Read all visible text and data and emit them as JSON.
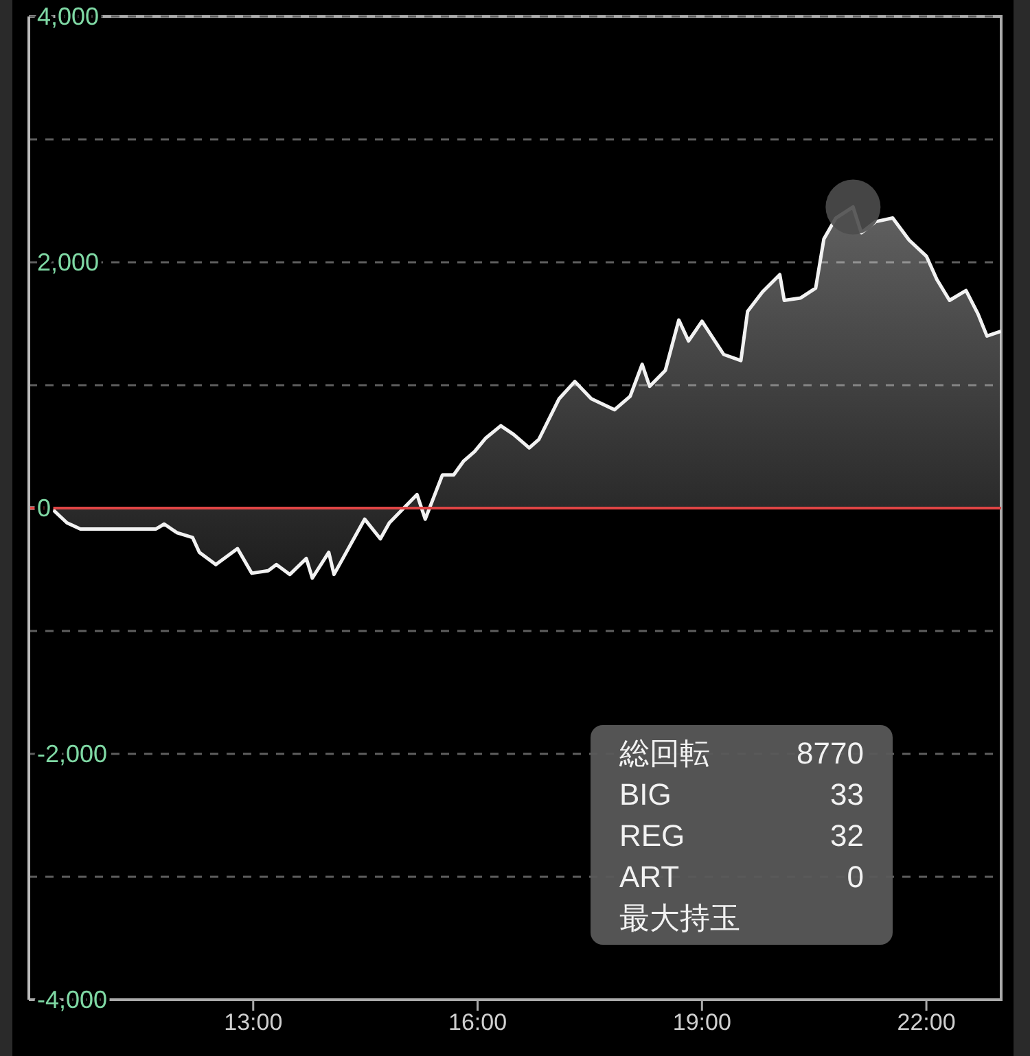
{
  "chart_data": {
    "type": "area",
    "x": [
      10.0,
      10.3,
      10.51,
      10.69,
      11.7,
      11.81,
      11.98,
      12.19,
      12.28,
      12.5,
      12.79,
      12.98,
      13.2,
      13.31,
      13.49,
      13.71,
      13.79,
      14.01,
      14.08,
      14.49,
      14.7,
      14.82,
      15.19,
      15.3,
      15.53,
      15.68,
      15.81,
      15.96,
      16.11,
      16.31,
      16.48,
      16.69,
      16.82,
      17.09,
      17.3,
      17.52,
      17.83,
      18.04,
      18.2,
      18.3,
      18.51,
      18.69,
      18.82,
      19.0,
      19.29,
      19.52,
      19.61,
      19.81,
      20.04,
      20.1,
      20.32,
      20.52,
      20.63,
      20.79,
      21.02,
      21.13,
      21.32,
      21.55,
      21.77,
      22.0,
      22.14,
      22.31,
      22.53,
      22.69,
      22.81,
      23.0
    ],
    "series": [
      {
        "color": "#f2f2f2",
        "values": [
          0,
          0,
          -120,
          -170,
          -170,
          -130,
          -200,
          -240,
          -360,
          -460,
          -330,
          -530,
          -510,
          -460,
          -540,
          -410,
          -570,
          -360,
          -540,
          -90,
          -250,
          -120,
          110,
          -90,
          270,
          270,
          380,
          460,
          570,
          670,
          600,
          490,
          560,
          890,
          1030,
          890,
          800,
          910,
          1170,
          990,
          1120,
          1530,
          1360,
          1520,
          1250,
          1200,
          1600,
          1760,
          1900,
          1690,
          1710,
          1790,
          2190,
          2360,
          2450,
          2240,
          2330,
          2360,
          2180,
          2050,
          1860,
          1690,
          1770,
          1580,
          1400,
          1440
        ]
      },
      {
        "type": "scatter",
        "x": [
          21.02
        ],
        "values": [
          2450
        ],
        "color": "#4d4d4d",
        "marker": "circle"
      }
    ],
    "xlim": [
      10,
      23
    ],
    "xticks": [
      {
        "value": 13,
        "label": "13:00"
      },
      {
        "value": 16,
        "label": "16:00"
      },
      {
        "value": 19,
        "label": "19:00"
      },
      {
        "value": 22,
        "label": "22:00"
      }
    ],
    "ylim": [
      -4000,
      4000
    ],
    "yticks": [
      {
        "value": -4000,
        "label": "-4,000"
      },
      {
        "value": -3000,
        "label": null
      },
      {
        "value": -2000,
        "label": "-2,000"
      },
      {
        "value": -1000,
        "label": null
      },
      0,
      {
        "value": 1000,
        "label": null
      },
      {
        "value": 2000,
        "label": "2,000"
      },
      {
        "value": 3000,
        "label": null
      },
      {
        "value": 4000,
        "label": "4,000"
      }
    ],
    "grid": "y",
    "ref_lines": [
      {
        "axis": "y",
        "value": 0,
        "color": "#e04545"
      }
    ],
    "annotations": [
      "総回転",
      "8770",
      "BIG",
      "33",
      "REG",
      "32",
      "ART",
      "0",
      "最大持玉"
    ]
  }
}
